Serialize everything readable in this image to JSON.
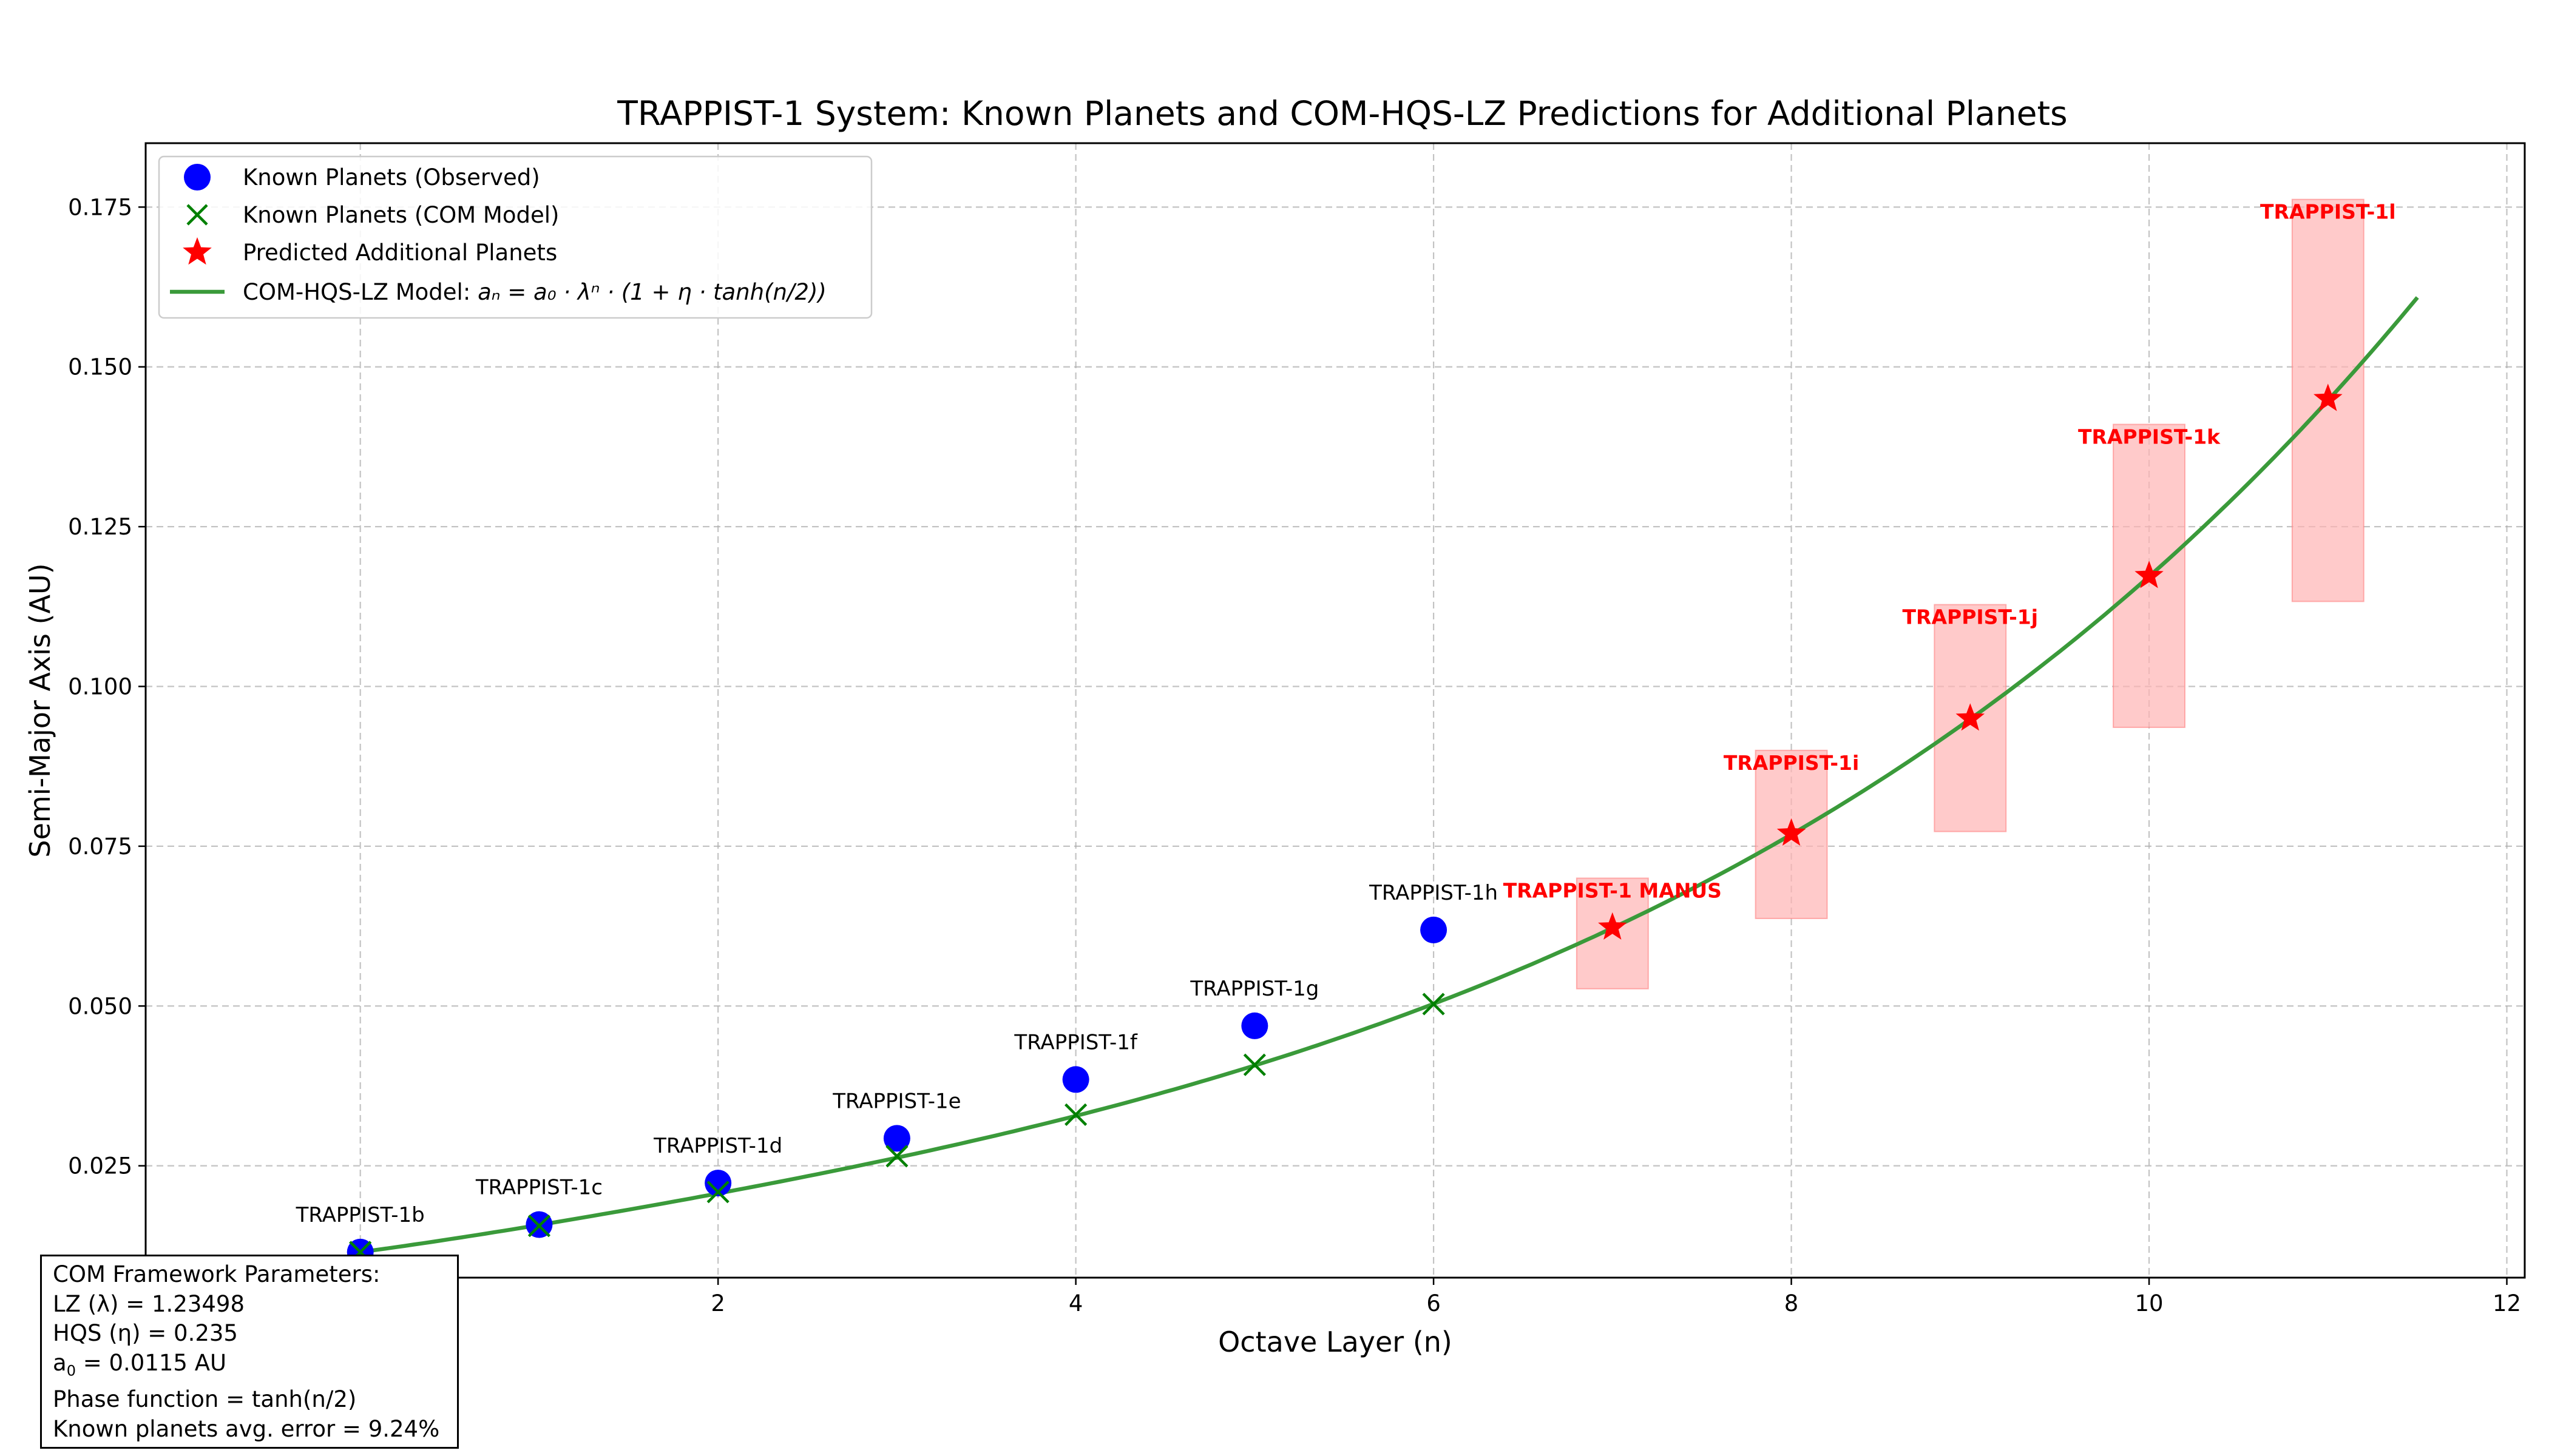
{
  "chart_data": {
    "type": "scatter",
    "title": "TRAPPIST-1 System: Known Planets and COM-HQS-LZ Predictions for Additional Planets",
    "xlabel": "Octave Layer (n)",
    "ylabel": "Semi-Major Axis (AU)",
    "xlim": [
      -1.2,
      12.1
    ],
    "ylim": [
      0.0075,
      0.185
    ],
    "xticks": [
      0,
      2,
      4,
      6,
      8,
      10,
      12
    ],
    "xtick_labels": [
      "0",
      "2",
      "4",
      "6",
      "8",
      "10",
      "12"
    ],
    "yticks": [
      0.025,
      0.05,
      0.075,
      0.1,
      0.125,
      0.15,
      0.175
    ],
    "ytick_labels": [
      "0.025",
      "0.050",
      "0.075",
      "0.100",
      "0.125",
      "0.150",
      "0.175"
    ],
    "grid": true,
    "legend_position": "top-left",
    "legend": [
      {
        "label": "Known Planets (Observed)",
        "marker": "circle",
        "color": "#0000ff"
      },
      {
        "label": "Known Planets (COM Model)",
        "marker": "x",
        "color": "#008000"
      },
      {
        "label": "Predicted Additional Planets",
        "marker": "star",
        "color": "#ff0000"
      },
      {
        "label": "COM-HQS-LZ Model: ",
        "formula": "aₙ = a₀ · λⁿ · (1 + η · tanh(n/2))",
        "marker": "line",
        "color": "#3a9a3a"
      }
    ],
    "known_observed": [
      {
        "name": "TRAPPIST-1b",
        "n": 0,
        "a": 0.0115
      },
      {
        "name": "TRAPPIST-1c",
        "n": 1,
        "a": 0.0158
      },
      {
        "name": "TRAPPIST-1d",
        "n": 2,
        "a": 0.0223
      },
      {
        "name": "TRAPPIST-1e",
        "n": 3,
        "a": 0.0293
      },
      {
        "name": "TRAPPIST-1f",
        "n": 4,
        "a": 0.0385
      },
      {
        "name": "TRAPPIST-1g",
        "n": 5,
        "a": 0.0469
      },
      {
        "name": "TRAPPIST-1h",
        "n": 6,
        "a": 0.0619
      }
    ],
    "known_model": [
      {
        "n": 0,
        "a": 0.0115
      },
      {
        "n": 1,
        "a": 0.0156
      },
      {
        "n": 2,
        "a": 0.0209
      },
      {
        "n": 3,
        "a": 0.0265
      },
      {
        "n": 4,
        "a": 0.033
      },
      {
        "n": 5,
        "a": 0.0408
      },
      {
        "n": 6,
        "a": 0.0503
      }
    ],
    "predicted": [
      {
        "name": "TRAPPIST-1 MANUS",
        "n": 7,
        "a": 0.0623,
        "range": [
          0.0527,
          0.07
        ]
      },
      {
        "name": "TRAPPIST-1i",
        "n": 8,
        "a": 0.077,
        "range": [
          0.0637,
          0.09
        ]
      },
      {
        "name": "TRAPPIST-1j",
        "n": 9,
        "a": 0.095,
        "range": [
          0.0773,
          0.1128
        ]
      },
      {
        "name": "TRAPPIST-1k",
        "n": 10,
        "a": 0.1173,
        "range": [
          0.0936,
          0.141
        ]
      },
      {
        "name": "TRAPPIST-1l",
        "n": 11,
        "a": 0.145,
        "range": [
          0.1133,
          0.1762
        ]
      }
    ],
    "model_curve": {
      "a0": 0.0115,
      "lambda": 1.23498,
      "eta": 0.235,
      "n_range": [
        0,
        11.5
      ]
    }
  },
  "parameters_box": {
    "title": "COM Framework Parameters:",
    "lz": "LZ (λ) = 1.23498",
    "hqs": "HQS (η) = 0.235",
    "a0_prefix": "a",
    "a0_sub": "0",
    "a0_value": " = 0.0115 AU",
    "phase": "Phase function = tanh(n/2)",
    "error": "Known planets avg. error = 9.24%"
  },
  "colors": {
    "observed": "#0000ff",
    "model_marker": "#008000",
    "curve": "#3a9a3a",
    "predicted": "#ff0000",
    "prediction_range": "#ffb3b3",
    "grid": "#b0b0b0"
  }
}
